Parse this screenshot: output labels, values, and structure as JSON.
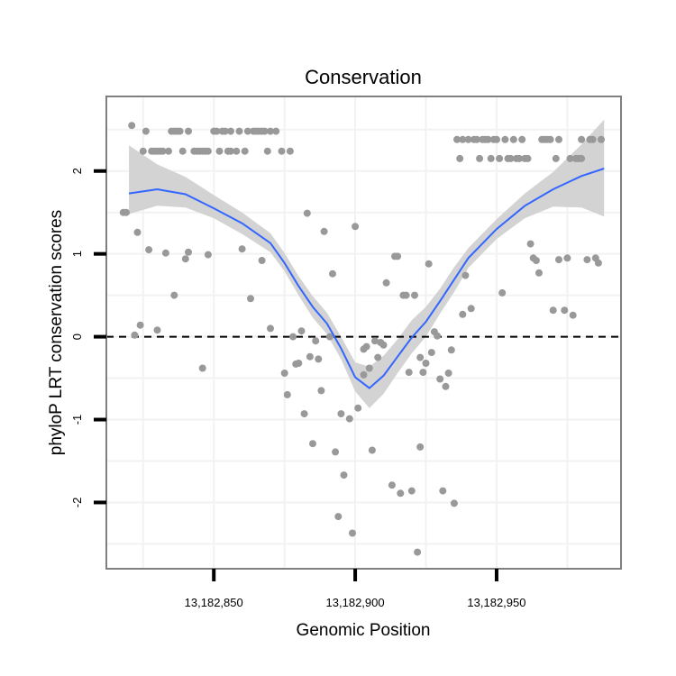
{
  "chart_data": {
    "type": "scatter",
    "title": "Conservation",
    "xlabel": "Genomic Position",
    "ylabel": "phyloP LRT conservation scores",
    "xlim": [
      13182812,
      13182994
    ],
    "ylim": [
      -2.8,
      2.9
    ],
    "x_ticks": [
      13182850,
      13182900,
      13182950
    ],
    "x_tick_labels": [
      "13,182,850",
      "13,182,900",
      "13,182,950"
    ],
    "y_ticks": [
      -2,
      -1,
      0,
      1,
      2
    ],
    "y_tick_labels": [
      "-2",
      "-1",
      "0",
      "1",
      "2"
    ],
    "grid": true,
    "reference_line": {
      "y": 0,
      "style": "dashed"
    },
    "colors": {
      "points": "#999999",
      "smooth_line": "#3366ff",
      "ribbon": "#d3d3d3",
      "panel_border": "#7f7f7f",
      "grid": "#f2f2f2"
    },
    "series": [
      {
        "name": "scores",
        "kind": "points",
        "points": [
          [
            13182818,
            1.5
          ],
          [
            13182819,
            1.5
          ],
          [
            13182821,
            2.55
          ],
          [
            13182822,
            0.02
          ],
          [
            13182823,
            1.26
          ],
          [
            13182824,
            0.14
          ],
          [
            13182825,
            2.24
          ],
          [
            13182826,
            2.48
          ],
          [
            13182827,
            1.05
          ],
          [
            13182828,
            2.24
          ],
          [
            13182829,
            2.24
          ],
          [
            13182830,
            2.24
          ],
          [
            13182830,
            0.08
          ],
          [
            13182831,
            2.24
          ],
          [
            13182832,
            2.24
          ],
          [
            13182833,
            1.01
          ],
          [
            13182834,
            2.24
          ],
          [
            13182835,
            2.48
          ],
          [
            13182836,
            2.48
          ],
          [
            13182836,
            0.5
          ],
          [
            13182837,
            2.48
          ],
          [
            13182838,
            2.48
          ],
          [
            13182839,
            2.24
          ],
          [
            13182840,
            0.94
          ],
          [
            13182841,
            1.02
          ],
          [
            13182841,
            2.48
          ],
          [
            13182843,
            2.24
          ],
          [
            13182844,
            2.24
          ],
          [
            13182845,
            2.24
          ],
          [
            13182846,
            2.24
          ],
          [
            13182846,
            -0.38
          ],
          [
            13182847,
            2.24
          ],
          [
            13182848,
            2.24
          ],
          [
            13182848,
            0.99
          ],
          [
            13182850,
            2.48
          ],
          [
            13182851,
            2.48
          ],
          [
            13182852,
            2.24
          ],
          [
            13182853,
            2.48
          ],
          [
            13182854,
            2.48
          ],
          [
            13182855,
            2.24
          ],
          [
            13182856,
            2.48
          ],
          [
            13182856,
            2.24
          ],
          [
            13182858,
            2.24
          ],
          [
            13182859,
            2.48
          ],
          [
            13182860,
            1.06
          ],
          [
            13182861,
            2.24
          ],
          [
            13182862,
            2.48
          ],
          [
            13182863,
            0.46
          ],
          [
            13182864,
            2.48
          ],
          [
            13182865,
            2.48
          ],
          [
            13182866,
            2.48
          ],
          [
            13182867,
            2.48
          ],
          [
            13182867,
            0.92
          ],
          [
            13182868,
            2.48
          ],
          [
            13182869,
            2.24
          ],
          [
            13182870,
            0.1
          ],
          [
            13182870,
            2.48
          ],
          [
            13182872,
            2.48
          ],
          [
            13182874,
            2.24
          ],
          [
            13182875,
            -0.44
          ],
          [
            13182876,
            -0.7
          ],
          [
            13182877,
            2.24
          ],
          [
            13182878,
            0.0
          ],
          [
            13182879,
            -0.33
          ],
          [
            13182880,
            -0.32
          ],
          [
            13182881,
            0.07
          ],
          [
            13182882,
            -0.93
          ],
          [
            13182883,
            1.49
          ],
          [
            13182884,
            -0.24
          ],
          [
            13182885,
            -1.29
          ],
          [
            13182886,
            -0.05
          ],
          [
            13182887,
            -0.27
          ],
          [
            13182888,
            -0.65
          ],
          [
            13182889,
            1.27
          ],
          [
            13182891,
            0.0
          ],
          [
            13182892,
            0.76
          ],
          [
            13182893,
            -1.39
          ],
          [
            13182894,
            -2.17
          ],
          [
            13182895,
            -0.93
          ],
          [
            13182896,
            -1.67
          ],
          [
            13182898,
            -0.99
          ],
          [
            13182899,
            -2.37
          ],
          [
            13182900,
            1.33
          ],
          [
            13182901,
            -0.86
          ],
          [
            13182903,
            -0.15
          ],
          [
            13182903,
            -0.46
          ],
          [
            13182904,
            -0.12
          ],
          [
            13182905,
            -0.38
          ],
          [
            13182906,
            -1.37
          ],
          [
            13182907,
            -0.05
          ],
          [
            13182908,
            -0.25
          ],
          [
            13182909,
            -0.07
          ],
          [
            13182910,
            -0.1
          ],
          [
            13182911,
            0.65
          ],
          [
            13182913,
            -1.79
          ],
          [
            13182914,
            0.97
          ],
          [
            13182915,
            0.97
          ],
          [
            13182916,
            -1.89
          ],
          [
            13182917,
            0.5
          ],
          [
            13182918,
            0.5
          ],
          [
            13182919,
            -0.43
          ],
          [
            13182920,
            -1.86
          ],
          [
            13182921,
            0.5
          ],
          [
            13182922,
            -2.6
          ],
          [
            13182923,
            -1.33
          ],
          [
            13182923,
            -0.25
          ],
          [
            13182924,
            -0.43
          ],
          [
            13182925,
            -0.32
          ],
          [
            13182926,
            0.88
          ],
          [
            13182927,
            -0.19
          ],
          [
            13182928,
            0.06
          ],
          [
            13182929,
            0.01
          ],
          [
            13182930,
            -0.51
          ],
          [
            13182931,
            -1.86
          ],
          [
            13182932,
            -0.6
          ],
          [
            13182933,
            -0.44
          ],
          [
            13182934,
            -0.16
          ],
          [
            13182935,
            -2.01
          ],
          [
            13182936,
            2.38
          ],
          [
            13182937,
            2.15
          ],
          [
            13182938,
            2.38
          ],
          [
            13182938,
            0.27
          ],
          [
            13182939,
            0.74
          ],
          [
            13182940,
            2.38
          ],
          [
            13182941,
            0.34
          ],
          [
            13182942,
            2.38
          ],
          [
            13182943,
            2.38
          ],
          [
            13182944,
            2.15
          ],
          [
            13182945,
            2.38
          ],
          [
            13182946,
            2.38
          ],
          [
            13182947,
            2.38
          ],
          [
            13182948,
            2.15
          ],
          [
            13182949,
            2.38
          ],
          [
            13182950,
            2.38
          ],
          [
            13182951,
            2.15
          ],
          [
            13182952,
            0.53
          ],
          [
            13182953,
            2.38
          ],
          [
            13182954,
            2.15
          ],
          [
            13182955,
            2.15
          ],
          [
            13182956,
            2.38
          ],
          [
            13182957,
            2.15
          ],
          [
            13182958,
            2.15
          ],
          [
            13182959,
            2.38
          ],
          [
            13182960,
            2.15
          ],
          [
            13182961,
            2.15
          ],
          [
            13182962,
            1.12
          ],
          [
            13182963,
            0.95
          ],
          [
            13182964,
            0.92
          ],
          [
            13182965,
            0.77
          ],
          [
            13182966,
            2.38
          ],
          [
            13182967,
            2.38
          ],
          [
            13182968,
            2.38
          ],
          [
            13182969,
            2.38
          ],
          [
            13182970,
            0.32
          ],
          [
            13182971,
            2.15
          ],
          [
            13182972,
            2.38
          ],
          [
            13182972,
            0.93
          ],
          [
            13182974,
            0.32
          ],
          [
            13182975,
            0.95
          ],
          [
            13182976,
            2.15
          ],
          [
            13182977,
            0.26
          ],
          [
            13182978,
            2.15
          ],
          [
            13182979,
            2.15
          ],
          [
            13182980,
            2.38
          ],
          [
            13182980,
            2.15
          ],
          [
            13182982,
            0.93
          ],
          [
            13182983,
            2.38
          ],
          [
            13182984,
            2.38
          ],
          [
            13182985,
            0.95
          ],
          [
            13182986,
            0.89
          ],
          [
            13182987,
            2.38
          ]
        ]
      },
      {
        "name": "smooth",
        "kind": "line",
        "x": [
          13182820,
          13182830,
          13182840,
          13182850,
          13182860,
          13182870,
          13182875,
          13182880,
          13182885,
          13182890,
          13182895,
          13182900,
          13182905,
          13182910,
          13182915,
          13182920,
          13182925,
          13182930,
          13182935,
          13182940,
          13182950,
          13182960,
          13182970,
          13182980,
          13182988
        ],
        "y": [
          1.73,
          1.78,
          1.72,
          1.55,
          1.37,
          1.13,
          0.89,
          0.61,
          0.36,
          0.16,
          -0.14,
          -0.49,
          -0.62,
          -0.47,
          -0.24,
          -0.01,
          0.18,
          0.43,
          0.69,
          0.95,
          1.3,
          1.58,
          1.78,
          1.94,
          2.03
        ],
        "lower": [
          1.48,
          1.58,
          1.56,
          1.43,
          1.24,
          1.02,
          0.79,
          0.5,
          0.23,
          0.03,
          -0.27,
          -0.66,
          -0.86,
          -0.69,
          -0.44,
          -0.2,
          0.0,
          0.28,
          0.54,
          0.83,
          1.18,
          1.43,
          1.57,
          1.56,
          1.45
        ],
        "upper": [
          2.31,
          2.08,
          1.93,
          1.71,
          1.5,
          1.25,
          1.01,
          0.73,
          0.49,
          0.29,
          0.0,
          -0.31,
          -0.36,
          -0.23,
          -0.03,
          0.2,
          0.36,
          0.58,
          0.84,
          1.07,
          1.42,
          1.73,
          1.99,
          2.32,
          2.62
        ]
      }
    ]
  }
}
